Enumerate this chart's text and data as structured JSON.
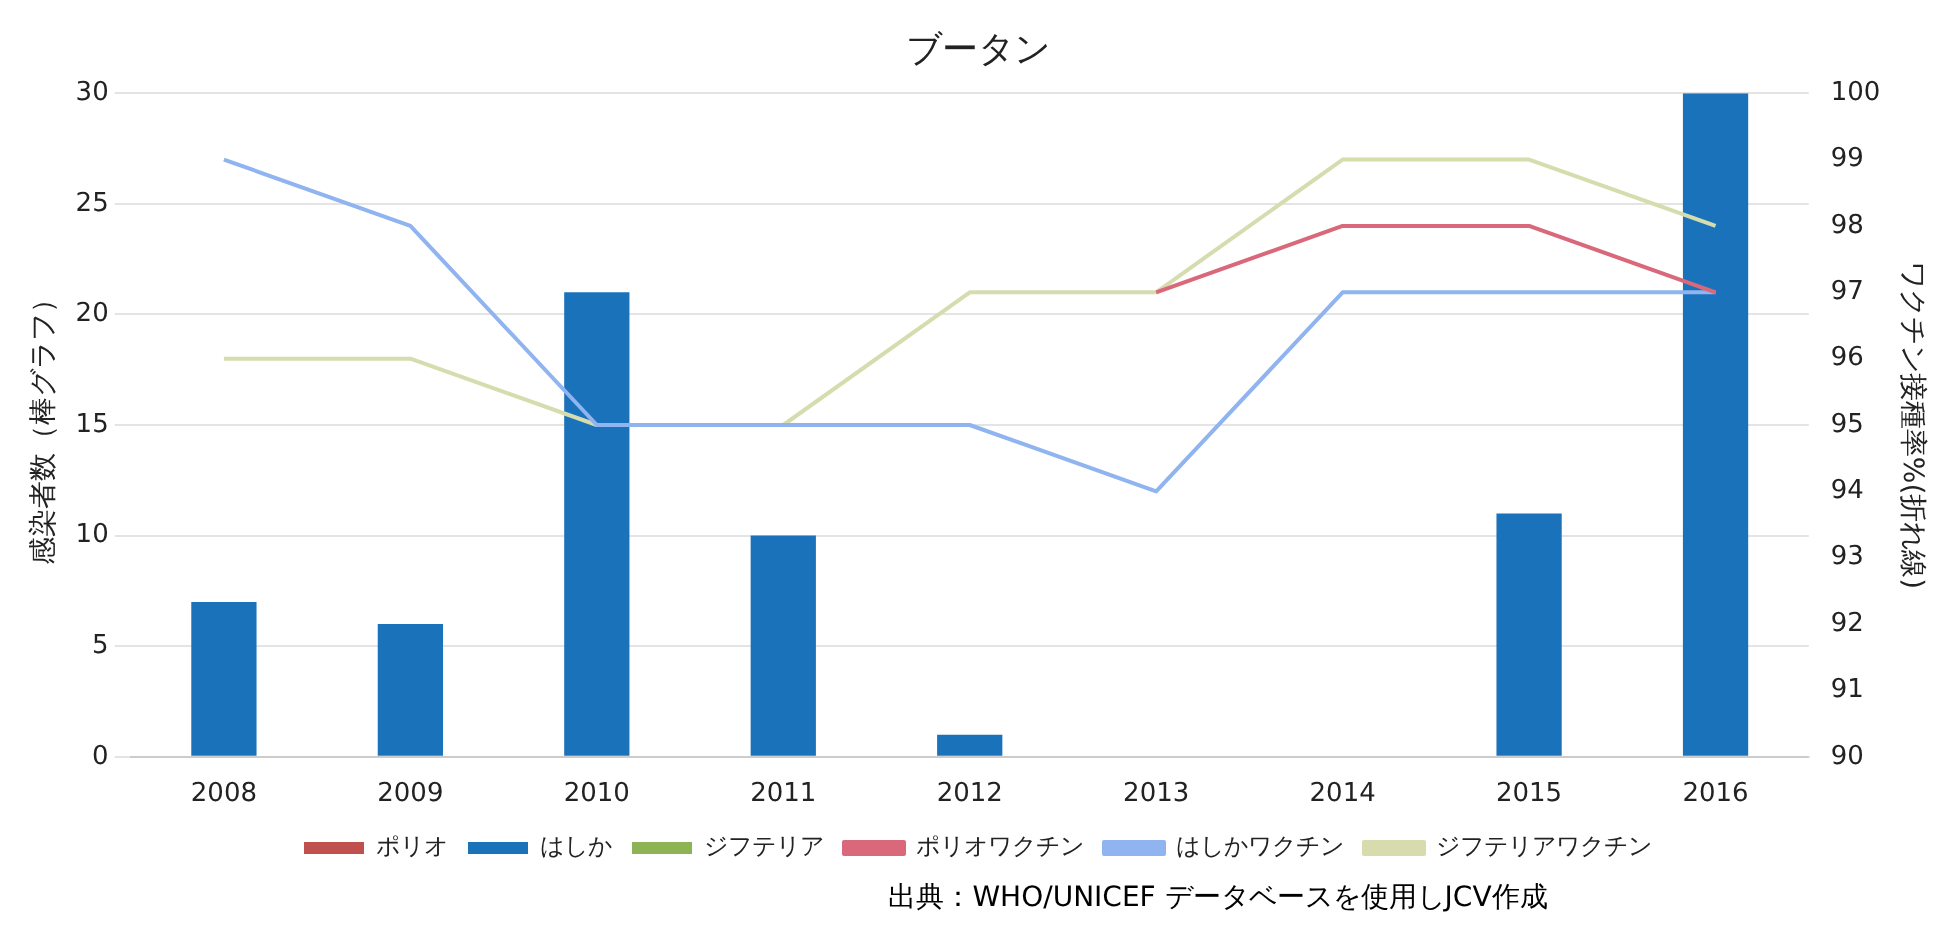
{
  "chart_data": {
    "type": "bar",
    "title": "ブータン",
    "ylabel": "感染者数（棒グラフ）",
    "y2label": "ワクチン接種率%(折れ線)",
    "categories": [
      "2008",
      "2009",
      "2010",
      "2011",
      "2012",
      "2013",
      "2014",
      "2015",
      "2016"
    ],
    "series": [
      {
        "name": "ポリオ",
        "color": "#c0504d",
        "values": [
          0,
          0,
          0,
          0,
          0,
          0,
          0,
          0,
          0
        ]
      },
      {
        "name": "はしか",
        "color": "#1a72bb",
        "values": [
          7,
          6,
          21,
          10,
          1,
          0,
          0,
          11,
          30
        ]
      },
      {
        "name": "ジフテリア",
        "color": "#8db354",
        "values": [
          0,
          0,
          0,
          0,
          0,
          0,
          0,
          0,
          0
        ]
      },
      {
        "name": "ポリオワクチン",
        "type": "line",
        "axis": "y2",
        "color": "#d9687a",
        "values": [
          null,
          null,
          null,
          null,
          null,
          97,
          98,
          98,
          97
        ]
      },
      {
        "name": "はしかワクチン",
        "type": "line",
        "axis": "y2",
        "color": "#8fb4ef",
        "values": [
          99,
          98,
          95,
          95,
          95,
          94,
          97,
          97,
          97
        ]
      },
      {
        "name": "ジフテリアワクチン",
        "type": "line",
        "axis": "y2",
        "color": "#d6dcae",
        "values": [
          96,
          96,
          95,
          95,
          97,
          97,
          99,
          99,
          98
        ]
      }
    ],
    "ylim": [
      0,
      30
    ],
    "yticks": [
      0,
      5,
      10,
      15,
      20,
      25,
      30
    ],
    "y2lim": [
      90,
      100
    ],
    "y2ticks": [
      90,
      91,
      92,
      93,
      94,
      95,
      96,
      97,
      98,
      99,
      100
    ],
    "grid": "y",
    "legend": "bottom",
    "marker": "none",
    "line_style": "solid",
    "annotations": [
      "出典：WHO/UNICEF データベースを使用しJCV作成"
    ]
  }
}
